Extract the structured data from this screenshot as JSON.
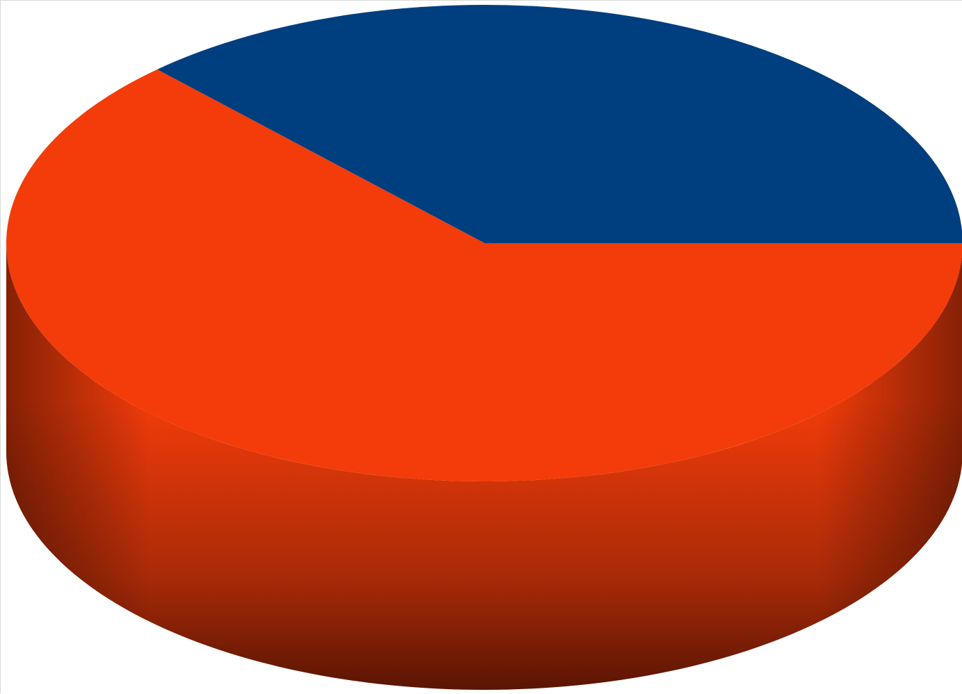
{
  "chart_data": {
    "type": "pie",
    "style": "3d",
    "title": "",
    "slices": [
      {
        "name": "",
        "value": 37,
        "color": "#003F7F"
      },
      {
        "name": "",
        "value": 63,
        "color": "#F33C0A"
      }
    ],
    "legend": "none",
    "data_labels": "none"
  }
}
